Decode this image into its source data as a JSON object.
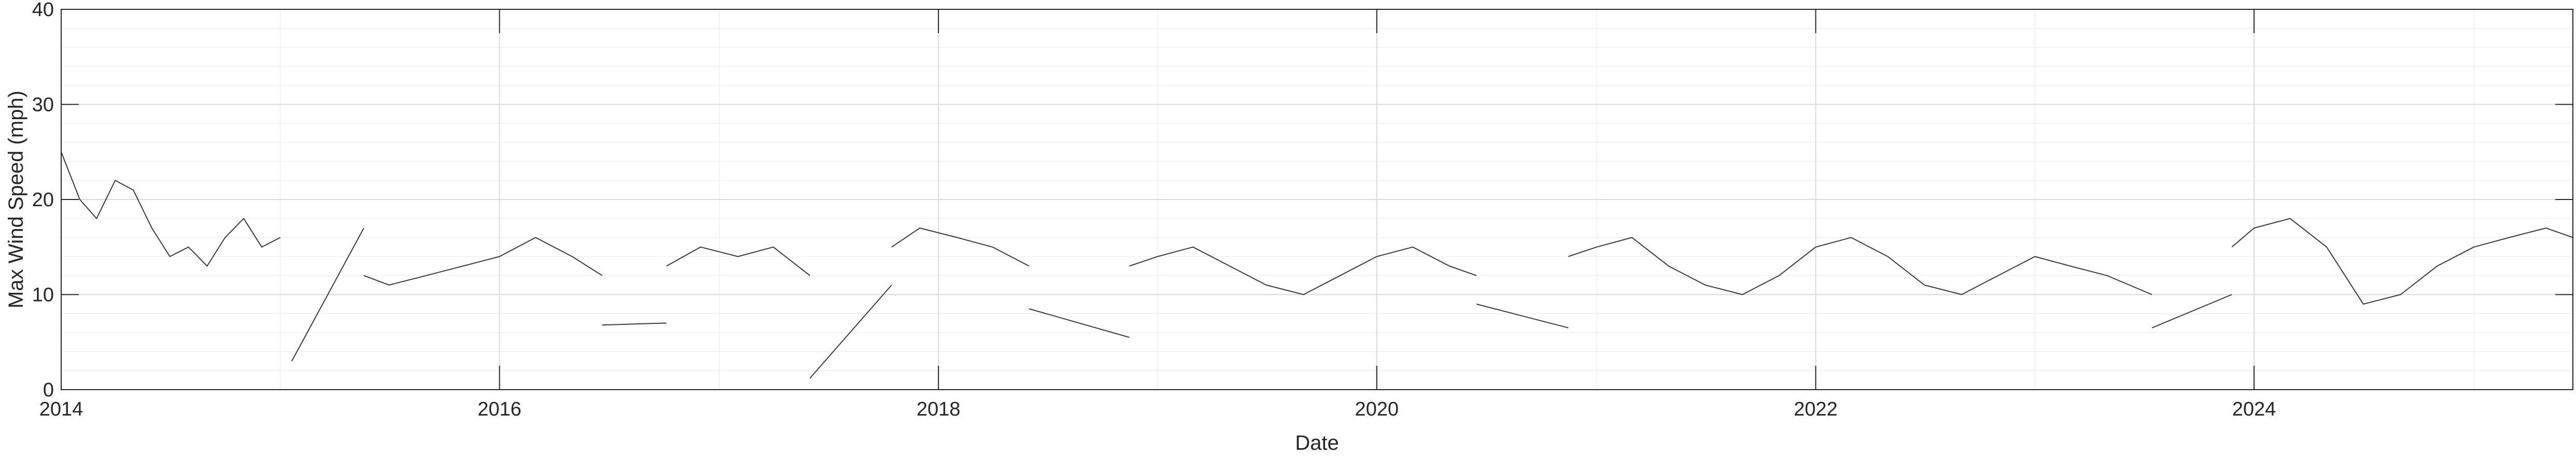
{
  "chart_data": {
    "type": "line",
    "title": "",
    "xlabel": "Date",
    "ylabel": "Max Wind Speed (mph)",
    "xlim": [
      "2014-01-01",
      "2025-06-15"
    ],
    "ylim": [
      0,
      40
    ],
    "x_ticks": [
      "2014",
      "2016",
      "2018",
      "2020",
      "2022",
      "2024"
    ],
    "y_ticks": [
      0,
      10,
      20,
      30,
      40
    ],
    "grid": true,
    "minor_grid": true,
    "legend": "none",
    "colors": {
      "line": "#3a3a3a",
      "axis": "#262626",
      "major_grid": "#d9d9d9",
      "minor_grid": "#efefef"
    },
    "series": [
      {
        "segments": [
          {
            "x": [
              "2014-01-01",
              "2014-02-01",
              "2014-03-01",
              "2014-04-01",
              "2014-05-01",
              "2014-06-01",
              "2014-07-01",
              "2014-08-01",
              "2014-09-01",
              "2014-10-01",
              "2014-11-01",
              "2014-12-01",
              "2015-01-01"
            ],
            "y": [
              25,
              20,
              18,
              22,
              21,
              17,
              14,
              15,
              13,
              16,
              18,
              15,
              16
            ]
          },
          {
            "x": [
              "2015-01-20",
              "2015-05-20"
            ],
            "y": [
              3,
              17
            ]
          },
          {
            "x": [
              "2015-05-20",
              "2015-07-01",
              "2015-09-01",
              "2015-11-01",
              "2016-01-01",
              "2016-03-01",
              "2016-05-01",
              "2016-06-20"
            ],
            "y": [
              12,
              11,
              12,
              13,
              14,
              16,
              14,
              12
            ]
          },
          {
            "x": [
              "2016-06-20",
              "2016-10-05"
            ],
            "y": [
              6.8,
              7
            ]
          },
          {
            "x": [
              "2016-10-05",
              "2016-12-01",
              "2017-02-01",
              "2017-04-01",
              "2017-06-01"
            ],
            "y": [
              13,
              15,
              14,
              15,
              12
            ]
          },
          {
            "x": [
              "2017-06-01",
              "2017-10-15"
            ],
            "y": [
              1.2,
              11
            ]
          },
          {
            "x": [
              "2017-10-15",
              "2017-12-01",
              "2018-02-01",
              "2018-04-01",
              "2018-06-01"
            ],
            "y": [
              15,
              17,
              16,
              15,
              13
            ]
          },
          {
            "x": [
              "2018-06-01",
              "2018-11-15"
            ],
            "y": [
              8.5,
              5.5
            ]
          },
          {
            "x": [
              "2018-11-15",
              "2019-01-01",
              "2019-03-01",
              "2019-05-01",
              "2019-07-01",
              "2019-09-01",
              "2019-11-01",
              "2020-01-01",
              "2020-03-01",
              "2020-05-01",
              "2020-06-15"
            ],
            "y": [
              13,
              14,
              15,
              13,
              11,
              10,
              12,
              14,
              15,
              13,
              12
            ]
          },
          {
            "x": [
              "2020-06-15",
              "2020-11-15"
            ],
            "y": [
              9,
              6.5
            ]
          },
          {
            "x": [
              "2020-11-15",
              "2021-01-01",
              "2021-03-01",
              "2021-05-01",
              "2021-07-01",
              "2021-09-01",
              "2021-11-01",
              "2022-01-01",
              "2022-03-01",
              "2022-05-01",
              "2022-07-01",
              "2022-09-01",
              "2022-11-01",
              "2023-01-01",
              "2023-03-01",
              "2023-05-01",
              "2023-07-15"
            ],
            "y": [
              14,
              15,
              16,
              13,
              11,
              10,
              12,
              15,
              16,
              14,
              11,
              10,
              12,
              14,
              13,
              12,
              10
            ]
          },
          {
            "x": [
              "2023-07-15",
              "2023-11-25"
            ],
            "y": [
              6.5,
              10
            ]
          },
          {
            "x": [
              "2023-11-25",
              "2024-01-01",
              "2024-03-01",
              "2024-05-01",
              "2024-07-01",
              "2024-09-01",
              "2024-11-01",
              "2025-01-01",
              "2025-03-01",
              "2025-05-01",
              "2025-06-15"
            ],
            "y": [
              15,
              17,
              18,
              15,
              9,
              10,
              13,
              15,
              16,
              17,
              16
            ]
          }
        ]
      }
    ]
  }
}
